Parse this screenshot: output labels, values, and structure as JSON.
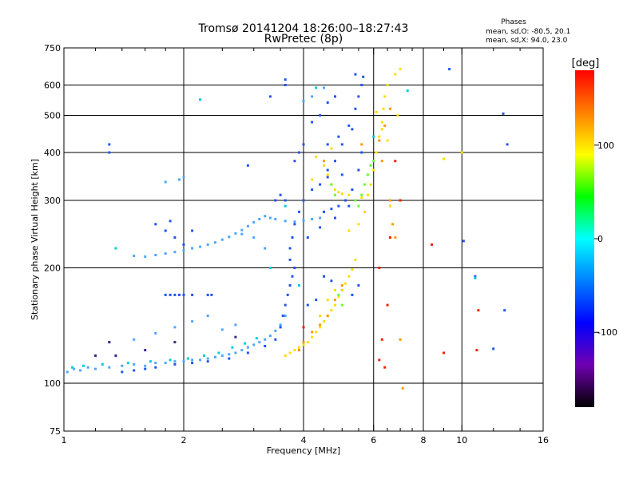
{
  "chart_data": {
    "type": "scatter",
    "title": "Tromsø 20141204 18:26:00–18:27:43",
    "subtitle": "RwPretec (8p)",
    "xlabel": "Frequency [MHz]",
    "ylabel": "Stationary phase Virtual Height [km]",
    "x_scale": "log",
    "y_scale": "log",
    "xlim": [
      1,
      16
    ],
    "ylim": [
      75,
      750
    ],
    "x_ticks": [
      1,
      2,
      4,
      6,
      8,
      10,
      16
    ],
    "x_tick_labels": [
      "1",
      "2",
      "4",
      "6",
      "8",
      "10",
      "16"
    ],
    "x_minor_ticks": [
      1.2,
      1.4,
      1.6,
      1.8,
      2.5,
      3,
      3.5,
      4.5,
      5,
      5.5,
      6.5,
      7,
      7.5,
      9,
      12,
      14
    ],
    "y_ticks": [
      75,
      100,
      200,
      300,
      400,
      500,
      600,
      750
    ],
    "y_tick_labels": [
      "75",
      "100",
      "200",
      "300",
      "400",
      "500",
      "600",
      "750"
    ],
    "grid": true,
    "info": {
      "heading": "Phases",
      "line1": "mean, sd,O: -80.5, 20.1",
      "line2": "mean, sd,X:  94.0, 23.0"
    },
    "colorbar": {
      "label": "[deg]",
      "range": [
        -180,
        180
      ],
      "ticks": [
        100,
        0,
        -100
      ],
      "tick_labels": [
        "100",
        "0",
        "-100"
      ],
      "colors": [
        "#ff0000",
        "#ff8000",
        "#ffff00",
        "#00ff00",
        "#00ffff",
        "#0080ff",
        "#0000ff",
        "#7000b0",
        "#000000"
      ]
    },
    "series": [
      {
        "color": "#4da6ff",
        "points": [
          [
            1.02,
            107
          ],
          [
            1.06,
            109
          ],
          [
            1.1,
            108
          ],
          [
            1.15,
            110
          ],
          [
            1.2,
            109
          ],
          [
            1.3,
            110
          ],
          [
            1.4,
            111
          ],
          [
            1.5,
            112
          ],
          [
            1.6,
            111
          ],
          [
            1.7,
            113
          ],
          [
            1.8,
            113
          ],
          [
            1.9,
            114
          ],
          [
            2.0,
            114
          ],
          [
            2.1,
            115
          ],
          [
            2.2,
            115
          ],
          [
            2.3,
            116
          ],
          [
            2.4,
            117
          ],
          [
            2.5,
            118
          ],
          [
            2.6,
            119
          ],
          [
            2.7,
            120
          ],
          [
            2.8,
            122
          ],
          [
            2.9,
            124
          ],
          [
            3.0,
            126
          ],
          [
            3.1,
            128
          ],
          [
            3.2,
            130
          ],
          [
            3.3,
            133
          ],
          [
            3.4,
            137
          ],
          [
            3.5,
            142
          ],
          [
            3.6,
            150
          ],
          [
            1.5,
            215
          ],
          [
            1.6,
            214
          ],
          [
            1.7,
            216
          ],
          [
            1.8,
            218
          ],
          [
            1.9,
            220
          ],
          [
            2.0,
            222
          ],
          [
            2.1,
            225
          ],
          [
            2.2,
            227
          ],
          [
            2.3,
            230
          ],
          [
            2.4,
            233
          ],
          [
            2.5,
            237
          ],
          [
            2.6,
            241
          ],
          [
            2.7,
            246
          ],
          [
            2.8,
            251
          ],
          [
            2.9,
            257
          ],
          [
            3.0,
            263
          ],
          [
            3.1,
            268
          ],
          [
            3.2,
            273
          ],
          [
            3.3,
            270
          ],
          [
            3.4,
            268
          ],
          [
            3.6,
            265
          ],
          [
            3.8,
            264
          ],
          [
            4.0,
            266
          ],
          [
            4.2,
            268
          ],
          [
            4.4,
            270
          ],
          [
            1.95,
            340
          ],
          [
            2.0,
            345
          ],
          [
            1.8,
            335
          ],
          [
            1.3,
            128
          ],
          [
            1.5,
            130
          ],
          [
            1.7,
            135
          ],
          [
            1.9,
            140
          ],
          [
            2.1,
            145
          ],
          [
            2.3,
            150
          ],
          [
            2.5,
            138
          ],
          [
            2.7,
            142
          ],
          [
            3.2,
            225
          ],
          [
            3.0,
            240
          ],
          [
            2.8,
            245
          ],
          [
            4.5,
            590
          ],
          [
            4.2,
            560
          ],
          [
            4.0,
            545
          ]
        ]
      },
      {
        "color": "#2255ee",
        "points": [
          [
            1.4,
            107
          ],
          [
            1.5,
            108
          ],
          [
            1.6,
            109
          ],
          [
            1.7,
            110
          ],
          [
            1.9,
            112
          ],
          [
            2.1,
            113
          ],
          [
            2.3,
            114
          ],
          [
            2.6,
            116
          ],
          [
            2.9,
            120
          ],
          [
            3.2,
            125
          ],
          [
            3.4,
            130
          ],
          [
            3.5,
            140
          ],
          [
            3.55,
            150
          ],
          [
            3.6,
            160
          ],
          [
            3.65,
            170
          ],
          [
            3.7,
            180
          ],
          [
            3.75,
            190
          ],
          [
            3.8,
            200
          ],
          [
            3.7,
            210
          ],
          [
            3.7,
            225
          ],
          [
            3.75,
            240
          ],
          [
            3.8,
            260
          ],
          [
            3.9,
            280
          ],
          [
            4.0,
            300
          ],
          [
            4.2,
            320
          ],
          [
            4.4,
            330
          ],
          [
            4.6,
            345
          ],
          [
            4.8,
            380
          ],
          [
            5.0,
            420
          ],
          [
            5.2,
            470
          ],
          [
            5.4,
            520
          ],
          [
            5.5,
            560
          ],
          [
            5.6,
            600
          ],
          [
            5.65,
            630
          ],
          [
            4.5,
            280
          ],
          [
            4.7,
            285
          ],
          [
            4.9,
            290
          ],
          [
            5.1,
            300
          ],
          [
            5.3,
            320
          ],
          [
            5.5,
            360
          ],
          [
            5.6,
            400
          ],
          [
            1.8,
            170
          ],
          [
            1.85,
            170
          ],
          [
            1.9,
            170
          ],
          [
            1.95,
            170
          ],
          [
            2.0,
            170
          ],
          [
            2.1,
            170
          ],
          [
            2.3,
            170
          ],
          [
            2.35,
            170
          ],
          [
            1.7,
            260
          ],
          [
            1.8,
            250
          ],
          [
            1.85,
            265
          ],
          [
            1.9,
            240
          ],
          [
            2.0,
            230
          ],
          [
            2.1,
            250
          ],
          [
            3.4,
            300
          ],
          [
            3.5,
            310
          ],
          [
            3.6,
            300
          ],
          [
            3.6,
            600
          ],
          [
            3.6,
            620
          ],
          [
            2.9,
            370
          ],
          [
            1.3,
            420
          ],
          [
            1.3,
            400
          ],
          [
            4.1,
            240
          ],
          [
            4.4,
            255
          ],
          [
            4.8,
            270
          ],
          [
            5.2,
            290
          ],
          [
            4.6,
            420
          ],
          [
            4.9,
            440
          ],
          [
            5.3,
            460
          ],
          [
            4.5,
            190
          ],
          [
            4.7,
            185
          ],
          [
            5.0,
            175
          ],
          [
            5.3,
            170
          ],
          [
            5.5,
            180
          ],
          [
            4.1,
            160
          ],
          [
            4.3,
            165
          ],
          [
            3.3,
            560
          ],
          [
            5.0,
            350
          ],
          [
            4.6,
            360
          ],
          [
            4.0,
            420
          ],
          [
            4.2,
            480
          ],
          [
            4.4,
            500
          ],
          [
            4.6,
            540
          ],
          [
            4.8,
            560
          ],
          [
            5.4,
            640
          ],
          [
            3.8,
            380
          ],
          [
            3.9,
            400
          ],
          [
            9.3,
            660
          ],
          [
            12.7,
            505
          ],
          [
            13.0,
            420
          ],
          [
            10.8,
            190
          ],
          [
            12.0,
            123
          ],
          [
            12.8,
            155
          ],
          [
            10.1,
            235
          ]
        ]
      },
      {
        "color": "#ffdd00",
        "points": [
          [
            3.6,
            118
          ],
          [
            3.7,
            120
          ],
          [
            3.8,
            122
          ],
          [
            3.9,
            124
          ],
          [
            4.0,
            126
          ],
          [
            4.1,
            128
          ],
          [
            4.2,
            132
          ],
          [
            4.3,
            136
          ],
          [
            4.4,
            140
          ],
          [
            4.5,
            145
          ],
          [
            4.6,
            150
          ],
          [
            4.7,
            155
          ],
          [
            4.8,
            160
          ],
          [
            4.9,
            168
          ],
          [
            5.0,
            175
          ],
          [
            5.1,
            182
          ],
          [
            5.2,
            190
          ],
          [
            5.3,
            198
          ],
          [
            5.4,
            210
          ],
          [
            4.4,
            150
          ],
          [
            4.6,
            165
          ],
          [
            4.8,
            175
          ],
          [
            4.5,
            370
          ],
          [
            4.6,
            350
          ],
          [
            4.7,
            330
          ],
          [
            4.8,
            320
          ],
          [
            4.9,
            315
          ],
          [
            5.0,
            312
          ],
          [
            5.2,
            310
          ],
          [
            5.4,
            300
          ],
          [
            5.6,
            305
          ],
          [
            5.8,
            310
          ],
          [
            5.9,
            330
          ],
          [
            6.0,
            360
          ],
          [
            6.1,
            400
          ],
          [
            6.2,
            440
          ],
          [
            6.3,
            480
          ],
          [
            6.35,
            520
          ],
          [
            6.4,
            560
          ],
          [
            6.5,
            600
          ],
          [
            6.8,
            640
          ],
          [
            5.5,
            260
          ],
          [
            5.7,
            280
          ],
          [
            6.6,
            290
          ],
          [
            6.9,
            500
          ],
          [
            7.0,
            660
          ],
          [
            9.0,
            385
          ],
          [
            10.0,
            400
          ],
          [
            6.1,
            510
          ],
          [
            6.3,
            460
          ],
          [
            6.5,
            430
          ],
          [
            4.2,
            340
          ],
          [
            4.3,
            390
          ],
          [
            4.7,
            410
          ],
          [
            5.2,
            250
          ]
        ]
      },
      {
        "color": "#ff9900",
        "points": [
          [
            3.9,
            122
          ],
          [
            4.0,
            128
          ],
          [
            4.2,
            136
          ],
          [
            4.4,
            142
          ],
          [
            4.6,
            150
          ],
          [
            4.8,
            165
          ],
          [
            5.0,
            180
          ],
          [
            6.2,
            430
          ],
          [
            6.4,
            470
          ],
          [
            6.6,
            520
          ],
          [
            6.3,
            380
          ],
          [
            6.6,
            300
          ],
          [
            6.7,
            260
          ],
          [
            6.8,
            240
          ],
          [
            7.0,
            130
          ],
          [
            7.1,
            97
          ],
          [
            4.5,
            380
          ],
          [
            5.6,
            420
          ]
        ]
      },
      {
        "color": "#66ff33",
        "points": [
          [
            5.4,
            300
          ],
          [
            5.6,
            310
          ],
          [
            5.7,
            330
          ],
          [
            5.8,
            350
          ],
          [
            5.9,
            370
          ],
          [
            6.0,
            380
          ],
          [
            5.5,
            290
          ],
          [
            4.9,
            170
          ],
          [
            5.0,
            160
          ],
          [
            4.7,
            330
          ],
          [
            4.8,
            310
          ]
        ]
      },
      {
        "color": "#00ccdd",
        "points": [
          [
            1.05,
            110
          ],
          [
            1.12,
            111
          ],
          [
            1.25,
            112
          ],
          [
            1.45,
            113
          ],
          [
            1.65,
            114
          ],
          [
            1.85,
            115
          ],
          [
            2.05,
            116
          ],
          [
            2.25,
            118
          ],
          [
            2.45,
            120
          ],
          [
            2.65,
            124
          ],
          [
            2.85,
            127
          ],
          [
            3.05,
            131
          ],
          [
            3.3,
            200
          ],
          [
            3.9,
            180
          ],
          [
            4.3,
            590
          ],
          [
            10.8,
            188
          ],
          [
            2.2,
            550
          ],
          [
            1.35,
            225
          ],
          [
            7.3,
            580
          ],
          [
            6.0,
            440
          ],
          [
            3.6,
            290
          ]
        ]
      },
      {
        "color": "#ee2200",
        "points": [
          [
            6.2,
            115
          ],
          [
            6.3,
            130
          ],
          [
            6.6,
            240
          ],
          [
            6.8,
            380
          ],
          [
            6.2,
            200
          ],
          [
            8.4,
            230
          ],
          [
            10.9,
            122
          ],
          [
            11.0,
            155
          ],
          [
            4.0,
            140
          ],
          [
            6.5,
            160
          ],
          [
            6.4,
            110
          ],
          [
            7.0,
            300
          ],
          [
            9.0,
            120
          ]
        ]
      },
      {
        "color": "#442288",
        "points": [
          [
            1.3,
            128
          ],
          [
            1.2,
            118
          ],
          [
            1.6,
            122
          ],
          [
            1.9,
            128
          ],
          [
            2.7,
            132
          ],
          [
            1.35,
            118
          ]
        ]
      }
    ]
  }
}
